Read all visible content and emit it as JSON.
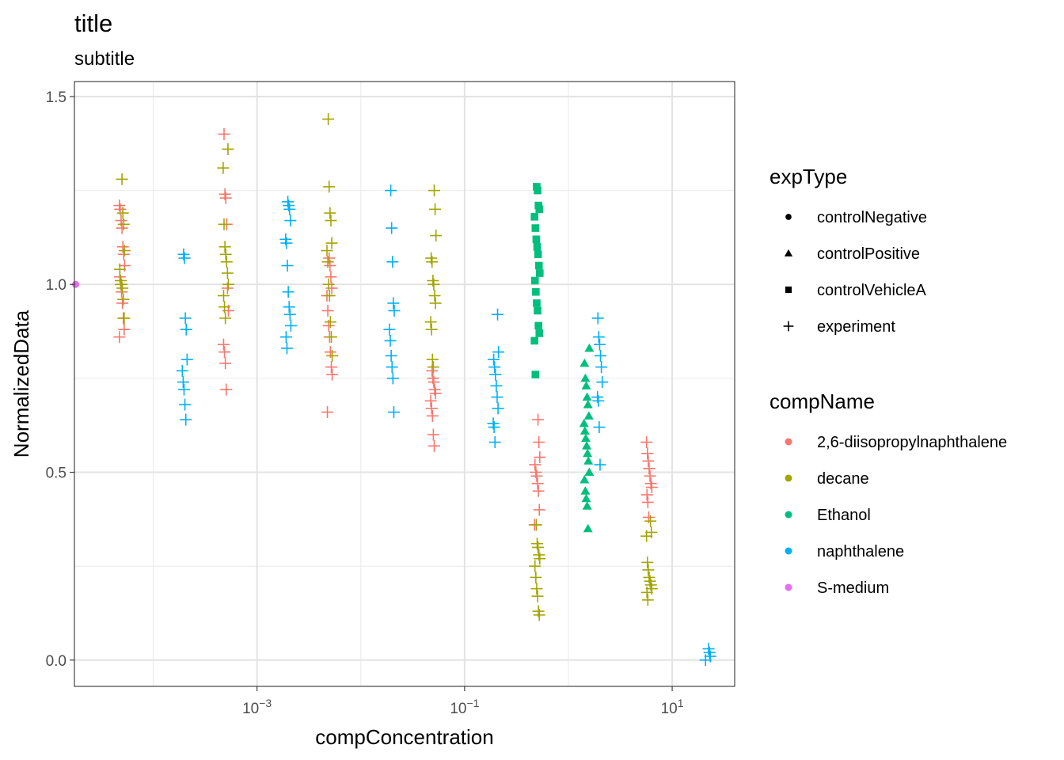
{
  "chart_data": {
    "type": "scatter",
    "title": "title",
    "subtitle": "subtitle",
    "xlabel": "compConcentration",
    "ylabel": "NormalizedData",
    "x_scale": "log10",
    "x_ticks": [
      0.001,
      0.1,
      10
    ],
    "x_tick_labels": [
      {
        "base": "10",
        "exp": "−3"
      },
      {
        "base": "10",
        "exp": "−1"
      },
      {
        "base": "10",
        "exp": "1"
      }
    ],
    "y_ticks": [
      0.0,
      0.5,
      1.0,
      1.5
    ],
    "y_tick_labels": [
      "0.0",
      "0.5",
      "1.0",
      "1.5"
    ],
    "xlim": [
      1.74e-05,
      40
    ],
    "ylim": [
      -0.07,
      1.54
    ],
    "grid": true,
    "legend_position": "right",
    "legends": [
      {
        "title": "expType",
        "entries": [
          {
            "label": "controlNegative",
            "shape": "circle"
          },
          {
            "label": "controlPositive",
            "shape": "triangle"
          },
          {
            "label": "controlVehicleA",
            "shape": "square"
          },
          {
            "label": "experiment",
            "shape": "plus"
          }
        ]
      },
      {
        "title": "compName",
        "entries": [
          {
            "label": "2,6-diisopropylnaphthalene",
            "color": "#F8766D"
          },
          {
            "label": "decane",
            "color": "#A3A500"
          },
          {
            "label": "Ethanol",
            "color": "#00BF7D"
          },
          {
            "label": "naphthalene",
            "color": "#00B0F6"
          },
          {
            "label": "S-medium",
            "color": "#E76BF3"
          }
        ]
      }
    ],
    "groups": [
      {
        "compName": "2,6-diisopropylnaphthalene",
        "expType": "experiment",
        "x": 5e-05,
        "y": [
          0.86,
          0.88,
          0.91,
          0.95,
          0.98,
          1.0,
          1.02,
          1.05,
          1.08,
          1.1,
          1.15,
          1.17,
          1.2,
          1.21
        ]
      },
      {
        "compName": "decane",
        "expType": "experiment",
        "x": 5e-05,
        "y": [
          0.91,
          0.96,
          0.99,
          1.0,
          1.01,
          1.04,
          1.09,
          1.16,
          1.19,
          1.28
        ]
      },
      {
        "compName": "naphthalene",
        "expType": "experiment",
        "x": 0.0002,
        "y": [
          0.64,
          0.68,
          0.72,
          0.74,
          0.77,
          0.8,
          0.88,
          0.91,
          1.07,
          1.08
        ]
      },
      {
        "compName": "2,6-diisopropylnaphthalene",
        "expType": "experiment",
        "x": 0.0005,
        "y": [
          0.72,
          0.79,
          0.82,
          0.84,
          0.93,
          0.99,
          1.16,
          1.23,
          1.24,
          1.4
        ]
      },
      {
        "compName": "decane",
        "expType": "experiment",
        "x": 0.0005,
        "y": [
          0.91,
          0.94,
          0.97,
          1.0,
          1.03,
          1.06,
          1.08,
          1.1,
          1.16,
          1.31,
          1.36
        ]
      },
      {
        "compName": "naphthalene",
        "expType": "experiment",
        "x": 0.002,
        "y": [
          0.83,
          0.86,
          0.89,
          0.92,
          0.94,
          0.98,
          1.05,
          1.11,
          1.12,
          1.17,
          1.2,
          1.21,
          1.22
        ]
      },
      {
        "compName": "2,6-diisopropylnaphthalene",
        "expType": "experiment",
        "x": 0.005,
        "y": [
          0.66,
          0.76,
          0.78,
          0.82,
          0.86,
          0.89,
          0.93,
          0.97,
          0.99,
          1.02,
          1.05,
          1.07
        ]
      },
      {
        "compName": "decane",
        "expType": "experiment",
        "x": 0.005,
        "y": [
          0.81,
          0.86,
          0.9,
          0.97,
          1.0,
          1.06,
          1.09,
          1.11,
          1.17,
          1.19,
          1.26,
          1.44
        ]
      },
      {
        "compName": "naphthalene",
        "expType": "experiment",
        "x": 0.02,
        "y": [
          0.66,
          0.75,
          0.78,
          0.81,
          0.85,
          0.88,
          0.93,
          0.95,
          1.06,
          1.15,
          1.25
        ]
      },
      {
        "compName": "2,6-diisopropylnaphthalene",
        "expType": "experiment",
        "x": 0.05,
        "y": [
          0.57,
          0.6,
          0.65,
          0.67,
          0.69,
          0.71,
          0.72,
          0.74,
          0.75,
          0.77
        ]
      },
      {
        "compName": "decane",
        "expType": "experiment",
        "x": 0.05,
        "y": [
          0.78,
          0.8,
          0.88,
          0.9,
          0.95,
          0.97,
          1.0,
          1.01,
          1.06,
          1.07,
          1.13,
          1.2,
          1.25
        ]
      },
      {
        "compName": "naphthalene",
        "expType": "experiment",
        "x": 0.2,
        "y": [
          0.58,
          0.62,
          0.63,
          0.67,
          0.7,
          0.73,
          0.76,
          0.78,
          0.8,
          0.82,
          0.92
        ]
      },
      {
        "compName": "Ethanol",
        "expType": "controlVehicleA",
        "x": 0.5,
        "y": [
          0.76,
          0.85,
          0.87,
          0.89,
          0.93,
          0.95,
          0.98,
          1.01,
          1.03,
          1.05,
          1.08,
          1.1,
          1.12,
          1.15,
          1.18,
          1.2,
          1.21,
          1.25,
          1.26
        ]
      },
      {
        "compName": "2,6-diisopropylnaphthalene",
        "expType": "experiment",
        "x": 0.5,
        "y": [
          0.36,
          0.4,
          0.45,
          0.47,
          0.49,
          0.5,
          0.52,
          0.54,
          0.58,
          0.64
        ]
      },
      {
        "compName": "decane",
        "expType": "experiment",
        "x": 0.5,
        "y": [
          0.12,
          0.13,
          0.17,
          0.19,
          0.22,
          0.25,
          0.27,
          0.28,
          0.3,
          0.31,
          0.36
        ]
      },
      {
        "compName": "Ethanol",
        "expType": "controlPositive",
        "x": 1.5,
        "y": [
          0.35,
          0.41,
          0.43,
          0.45,
          0.48,
          0.5,
          0.53,
          0.55,
          0.57,
          0.59,
          0.61,
          0.63,
          0.65,
          0.68,
          0.7,
          0.73,
          0.75,
          0.79,
          0.83
        ]
      },
      {
        "compName": "naphthalene",
        "expType": "experiment",
        "x": 2,
        "y": [
          0.52,
          0.62,
          0.69,
          0.7,
          0.74,
          0.78,
          0.81,
          0.84,
          0.86,
          0.91
        ]
      },
      {
        "compName": "2,6-diisopropylnaphthalene",
        "expType": "experiment",
        "x": 6,
        "y": [
          0.38,
          0.42,
          0.44,
          0.46,
          0.47,
          0.49,
          0.51,
          0.53,
          0.55,
          0.58
        ]
      },
      {
        "compName": "decane",
        "expType": "experiment",
        "x": 6,
        "y": [
          0.16,
          0.18,
          0.19,
          0.2,
          0.21,
          0.22,
          0.24,
          0.26,
          0.33,
          0.34,
          0.37
        ]
      },
      {
        "compName": "naphthalene",
        "expType": "experiment",
        "x": 22,
        "y": [
          0.0,
          0.01,
          0.02,
          0.03
        ]
      },
      {
        "compName": "S-medium",
        "expType": "controlNegative",
        "x": 1.74e-05,
        "y": [
          1.0
        ]
      }
    ]
  }
}
